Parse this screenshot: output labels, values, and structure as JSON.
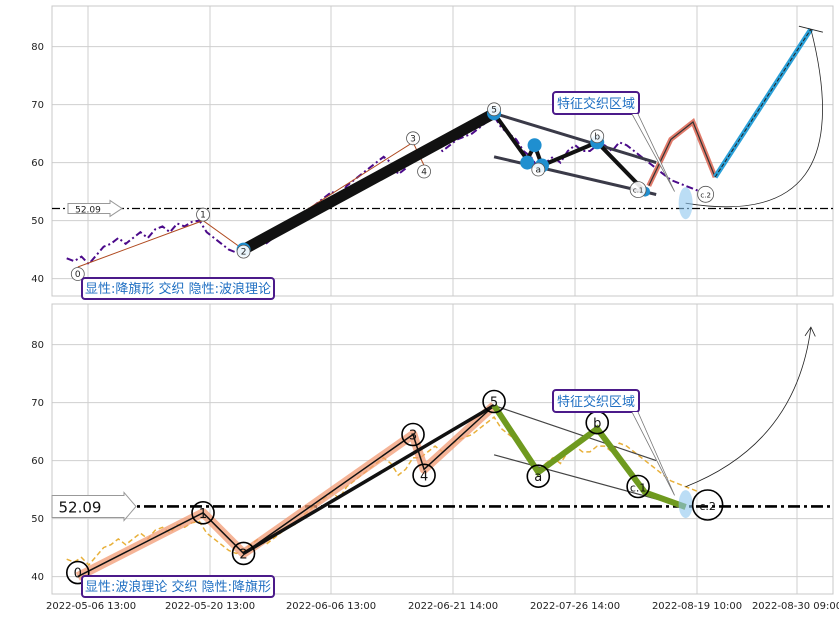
{
  "chart_data": [
    {
      "type": "line",
      "panel": "top",
      "ylim": [
        37,
        87
      ],
      "yticks": [
        40,
        50,
        60,
        70,
        80
      ],
      "grid": true,
      "level_label": "52.09",
      "level_value": 52.09,
      "caption": "显性:降旗形 交织 隐性:波浪理论",
      "zone_label": "特征交织区域",
      "price_series": [
        [
          0,
          43.5
        ],
        [
          1,
          43
        ],
        [
          2,
          43.8
        ],
        [
          3,
          42.5
        ],
        [
          4,
          44
        ],
        [
          5,
          45.5
        ],
        [
          6,
          46
        ],
        [
          7,
          47
        ],
        [
          8,
          46
        ],
        [
          9,
          47
        ],
        [
          10,
          48
        ],
        [
          11,
          47
        ],
        [
          12,
          48.5
        ],
        [
          13,
          49
        ],
        [
          14,
          48
        ],
        [
          15,
          49.5
        ],
        [
          16,
          49
        ],
        [
          17,
          49.8
        ],
        [
          18,
          50
        ],
        [
          19,
          48
        ],
        [
          20,
          47
        ],
        [
          21,
          46
        ],
        [
          22,
          45
        ],
        [
          23,
          44.5
        ],
        [
          24,
          45
        ],
        [
          25,
          46
        ],
        [
          26,
          47
        ],
        [
          27,
          46
        ],
        [
          28,
          47
        ],
        [
          29,
          48
        ],
        [
          30,
          49
        ],
        [
          31,
          49.5
        ],
        [
          32,
          51
        ],
        [
          33,
          52
        ],
        [
          34,
          53
        ],
        [
          35,
          54
        ],
        [
          36,
          55
        ],
        [
          37,
          54
        ],
        [
          38,
          56
        ],
        [
          39,
          57
        ],
        [
          40,
          58
        ],
        [
          41,
          59
        ],
        [
          42,
          60
        ],
        [
          43,
          61
        ],
        [
          44,
          60
        ],
        [
          45,
          58
        ],
        [
          46,
          59
        ],
        [
          47,
          61
        ],
        [
          48,
          61
        ],
        [
          49,
          62
        ],
        [
          50,
          63
        ],
        [
          51,
          62
        ],
        [
          52,
          63
        ],
        [
          53,
          64
        ],
        [
          54,
          64.5
        ],
        [
          55,
          65
        ],
        [
          56,
          66
        ],
        [
          57,
          67
        ],
        [
          58,
          68
        ],
        [
          59,
          66
        ],
        [
          60,
          65
        ],
        [
          61,
          64
        ],
        [
          62,
          62
        ],
        [
          63,
          61
        ],
        [
          64,
          59
        ],
        [
          65,
          60
        ],
        [
          66,
          61
        ],
        [
          67,
          60
        ],
        [
          68,
          62
        ],
        [
          69,
          63
        ],
        [
          70,
          62
        ],
        [
          71,
          62
        ],
        [
          72,
          63
        ],
        [
          73,
          63
        ],
        [
          74,
          62
        ],
        [
          75,
          63.5
        ],
        [
          76,
          63
        ],
        [
          77,
          62
        ],
        [
          78,
          61
        ],
        [
          79,
          60
        ],
        [
          80,
          59
        ],
        [
          81,
          58
        ],
        [
          82,
          57
        ],
        [
          83,
          56.5
        ],
        [
          84,
          56
        ],
        [
          85,
          55.5
        ],
        [
          86,
          55
        ]
      ],
      "points": [
        {
          "label": "0",
          "x": 1.5,
          "y": 42
        },
        {
          "label": "1",
          "x": 18.5,
          "y": 50
        },
        {
          "label": "2",
          "x": 24,
          "y": 45
        },
        {
          "label": "3",
          "x": 47,
          "y": 63.5
        },
        {
          "label": "4",
          "x": 48.5,
          "y": 59.5
        },
        {
          "label": "5",
          "x": 58,
          "y": 68.5
        },
        {
          "label": "a",
          "x": 64,
          "y": 59.5
        },
        {
          "label": "b",
          "x": 72,
          "y": 63.5
        },
        {
          "label": "c.1",
          "x": 78.5,
          "y": 55
        },
        {
          "label": "c.2",
          "x": 84,
          "y": 53.5
        }
      ],
      "projection": [
        [
          79,
          56
        ],
        [
          82,
          64
        ],
        [
          85,
          67
        ],
        [
          88,
          57.5
        ],
        [
          101,
          83
        ]
      ]
    },
    {
      "type": "line",
      "panel": "bottom",
      "ylim": [
        37,
        87
      ],
      "yticks": [
        40,
        50,
        60,
        70,
        80
      ],
      "grid": true,
      "level_label": "52.09",
      "level_value": 52.09,
      "caption": "显性:波浪理论 交织 隐性:降旗形",
      "zone_label": "特征交织区域",
      "points": [
        {
          "label": "0",
          "x": 1.5,
          "y": 40
        },
        {
          "label": "1",
          "x": 18.5,
          "y": 51
        },
        {
          "label": "2",
          "x": 24,
          "y": 44
        },
        {
          "label": "3",
          "x": 47,
          "y": 64.5
        },
        {
          "label": "4",
          "x": 48.5,
          "y": 58.5
        },
        {
          "label": "5",
          "x": 58,
          "y": 69.5
        },
        {
          "label": "a",
          "x": 64,
          "y": 58
        },
        {
          "label": "b",
          "x": 72,
          "y": 65.5
        },
        {
          "label": "c.1",
          "x": 78.5,
          "y": 54.5
        },
        {
          "label": "c.2",
          "x": 84,
          "y": 52
        }
      ],
      "xticks": [
        "2022-05-06 13:00",
        "2022-05-20 13:00",
        "2022-06-06 13:00",
        "2022-06-21 14:00",
        "2022-07-26 14:00",
        "2022-08-19 10:00",
        "2022-08-30 09:00"
      ]
    }
  ],
  "colors": {
    "price_top": "#4b0a8a",
    "price_bottom": "#e8b03a",
    "wave_fill": "#f29b74",
    "green": "#6f9a1f",
    "blue_pt": "#1f8fd0",
    "box_border": "#4b1a8a",
    "box_text": "#1f6fc2"
  }
}
